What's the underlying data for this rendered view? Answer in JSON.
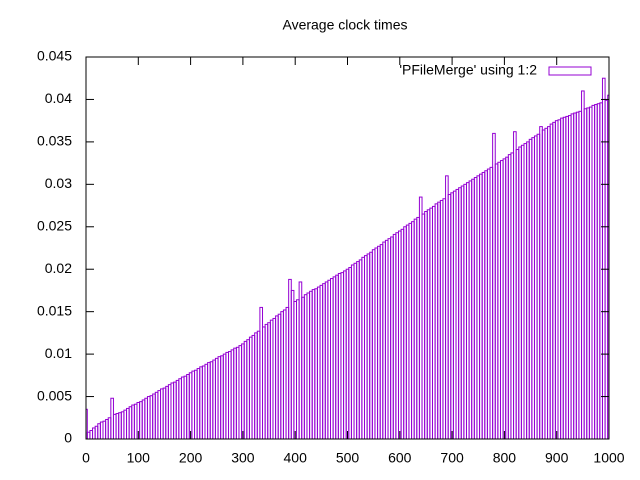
{
  "chart_data": {
    "type": "bar",
    "title": "Average clock times",
    "series": [
      {
        "name": "'PFileMerge' using 1:2",
        "color": "#9400d3",
        "x": [
          0,
          5,
          10,
          15,
          20,
          25,
          30,
          35,
          40,
          45,
          50,
          55,
          60,
          65,
          70,
          75,
          80,
          85,
          90,
          95,
          100,
          105,
          110,
          115,
          120,
          125,
          130,
          135,
          140,
          145,
          150,
          155,
          160,
          165,
          170,
          175,
          180,
          185,
          190,
          195,
          200,
          205,
          210,
          215,
          220,
          225,
          230,
          235,
          240,
          245,
          250,
          255,
          260,
          265,
          270,
          275,
          280,
          285,
          290,
          295,
          300,
          305,
          310,
          315,
          320,
          325,
          330,
          335,
          340,
          345,
          350,
          355,
          360,
          365,
          370,
          375,
          380,
          385,
          390,
          395,
          400,
          405,
          410,
          415,
          420,
          425,
          430,
          435,
          440,
          445,
          450,
          455,
          460,
          465,
          470,
          475,
          480,
          485,
          490,
          495,
          500,
          505,
          510,
          515,
          520,
          525,
          530,
          535,
          540,
          545,
          550,
          555,
          560,
          565,
          570,
          575,
          580,
          585,
          590,
          595,
          600,
          605,
          610,
          615,
          620,
          625,
          630,
          635,
          640,
          645,
          650,
          655,
          660,
          665,
          670,
          675,
          680,
          685,
          690,
          695,
          700,
          705,
          710,
          715,
          720,
          725,
          730,
          735,
          740,
          745,
          750,
          755,
          760,
          765,
          770,
          775,
          780,
          785,
          790,
          795,
          800,
          805,
          810,
          815,
          820,
          825,
          830,
          835,
          840,
          845,
          850,
          855,
          860,
          865,
          870,
          875,
          880,
          885,
          890,
          895,
          900,
          905,
          910,
          915,
          920,
          925,
          930,
          935,
          940,
          945,
          950,
          955,
          960,
          965,
          970,
          975,
          980,
          985,
          990,
          995,
          1000
        ],
        "values": [
          0.0035,
          0.0008,
          0.001,
          0.0013,
          0.0015,
          0.0018,
          0.002,
          0.0021,
          0.0023,
          0.0025,
          0.0048,
          0.0029,
          0.003,
          0.0031,
          0.0032,
          0.0034,
          0.0036,
          0.0038,
          0.004,
          0.0041,
          0.0043,
          0.0044,
          0.0046,
          0.0048,
          0.005,
          0.0051,
          0.0053,
          0.0055,
          0.0057,
          0.0059,
          0.006,
          0.0062,
          0.0064,
          0.0066,
          0.0067,
          0.0069,
          0.0071,
          0.0073,
          0.0074,
          0.0076,
          0.0078,
          0.008,
          0.0081,
          0.0083,
          0.0085,
          0.0086,
          0.0088,
          0.009,
          0.0091,
          0.0093,
          0.0095,
          0.0097,
          0.0098,
          0.01,
          0.0102,
          0.0103,
          0.0105,
          0.0107,
          0.0108,
          0.011,
          0.0112,
          0.0115,
          0.0117,
          0.012,
          0.0122,
          0.0125,
          0.0127,
          0.0155,
          0.0132,
          0.0135,
          0.0137,
          0.014,
          0.0142,
          0.0145,
          0.0147,
          0.015,
          0.0152,
          0.0155,
          0.0188,
          0.0175,
          0.0162,
          0.0164,
          0.0185,
          0.0167,
          0.017,
          0.0172,
          0.0174,
          0.0176,
          0.0177,
          0.0179,
          0.0181,
          0.0183,
          0.0185,
          0.0187,
          0.0189,
          0.0191,
          0.0193,
          0.0195,
          0.0196,
          0.0198,
          0.02,
          0.0202,
          0.0205,
          0.0207,
          0.0209,
          0.0211,
          0.0214,
          0.0216,
          0.0218,
          0.022,
          0.0223,
          0.0225,
          0.0227,
          0.0229,
          0.0232,
          0.0234,
          0.0236,
          0.0238,
          0.0241,
          0.0243,
          0.0245,
          0.0247,
          0.025,
          0.0252,
          0.0254,
          0.0256,
          0.0259,
          0.0261,
          0.0285,
          0.0265,
          0.0268,
          0.027,
          0.0272,
          0.0274,
          0.0277,
          0.0279,
          0.0281,
          0.0283,
          0.031,
          0.0288,
          0.029,
          0.0292,
          0.0294,
          0.0296,
          0.0298,
          0.03,
          0.0302,
          0.0304,
          0.0306,
          0.0308,
          0.031,
          0.0312,
          0.0314,
          0.0316,
          0.0318,
          0.032,
          0.036,
          0.0324,
          0.0326,
          0.0328,
          0.033,
          0.0332,
          0.0335,
          0.0337,
          0.0362,
          0.0341,
          0.0344,
          0.0346,
          0.0348,
          0.035,
          0.0353,
          0.0355,
          0.0357,
          0.0359,
          0.0368,
          0.0364,
          0.0366,
          0.0368,
          0.0371,
          0.0373,
          0.0375,
          0.0376,
          0.0378,
          0.0379,
          0.038,
          0.0381,
          0.0383,
          0.0384,
          0.0385,
          0.0386,
          0.041,
          0.0389,
          0.039,
          0.0391,
          0.0393,
          0.0394,
          0.0395,
          0.0396,
          0.0425,
          0.0399,
          0.0405
        ]
      }
    ],
    "xlim": [
      0,
      1000
    ],
    "xticks": [
      0,
      100,
      200,
      300,
      400,
      500,
      600,
      700,
      800,
      900,
      1000
    ],
    "ylim": [
      0,
      0.045
    ],
    "yticks": [
      0,
      0.005,
      0.01,
      0.015,
      0.02,
      0.025,
      0.03,
      0.035,
      0.04,
      0.045
    ],
    "legend": "top-right"
  }
}
